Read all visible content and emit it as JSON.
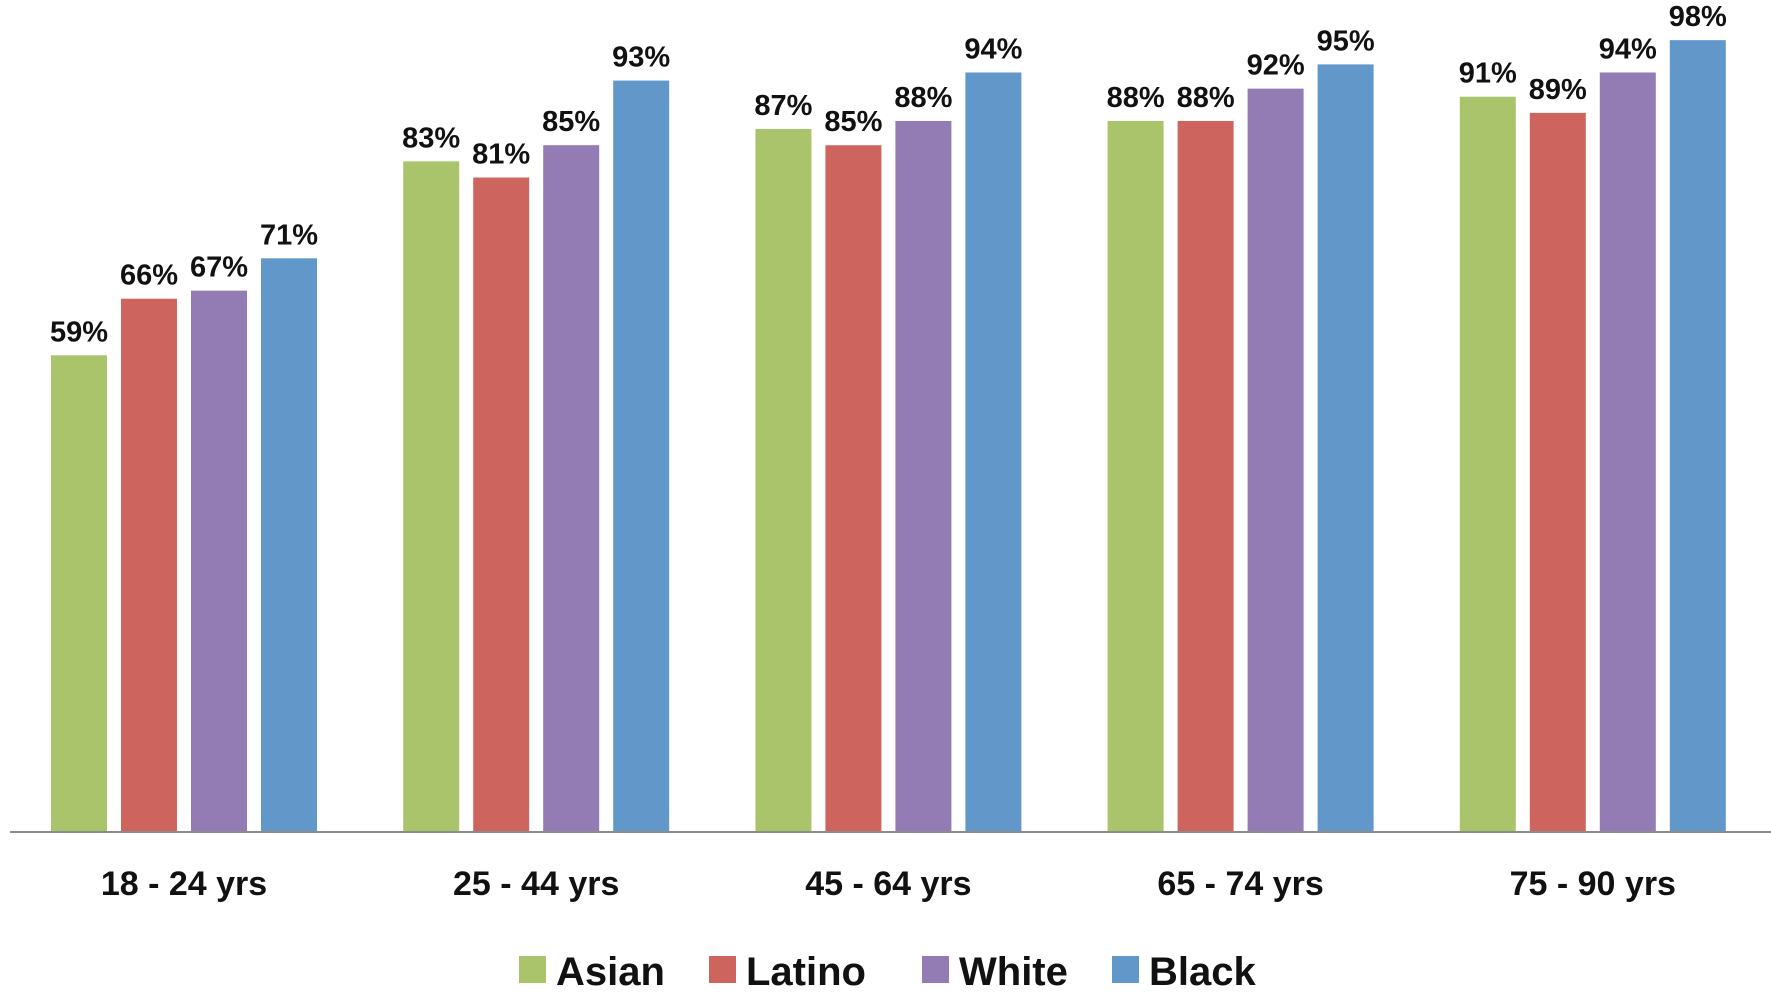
{
  "chart_data": {
    "type": "bar",
    "title": "",
    "xlabel": "",
    "ylabel": "",
    "ylim": [
      0,
      100
    ],
    "grid": false,
    "legend_position": "bottom",
    "value_suffix": "%",
    "categories": [
      "18 - 24 yrs",
      "25 - 44 yrs",
      "45 - 64 yrs",
      "65 - 74 yrs",
      "75 - 90 yrs"
    ],
    "series": [
      {
        "name": "Asian",
        "color": "#A9C46A",
        "values": [
          59,
          83,
          87,
          88,
          91
        ]
      },
      {
        "name": "Latino",
        "color": "#CD655E",
        "values": [
          66,
          81,
          85,
          88,
          89
        ]
      },
      {
        "name": "White",
        "color": "#937BB3",
        "values": [
          67,
          85,
          88,
          92,
          94
        ]
      },
      {
        "name": "Black",
        "color": "#6297CA",
        "values": [
          71,
          93,
          94,
          95,
          98
        ]
      }
    ]
  }
}
